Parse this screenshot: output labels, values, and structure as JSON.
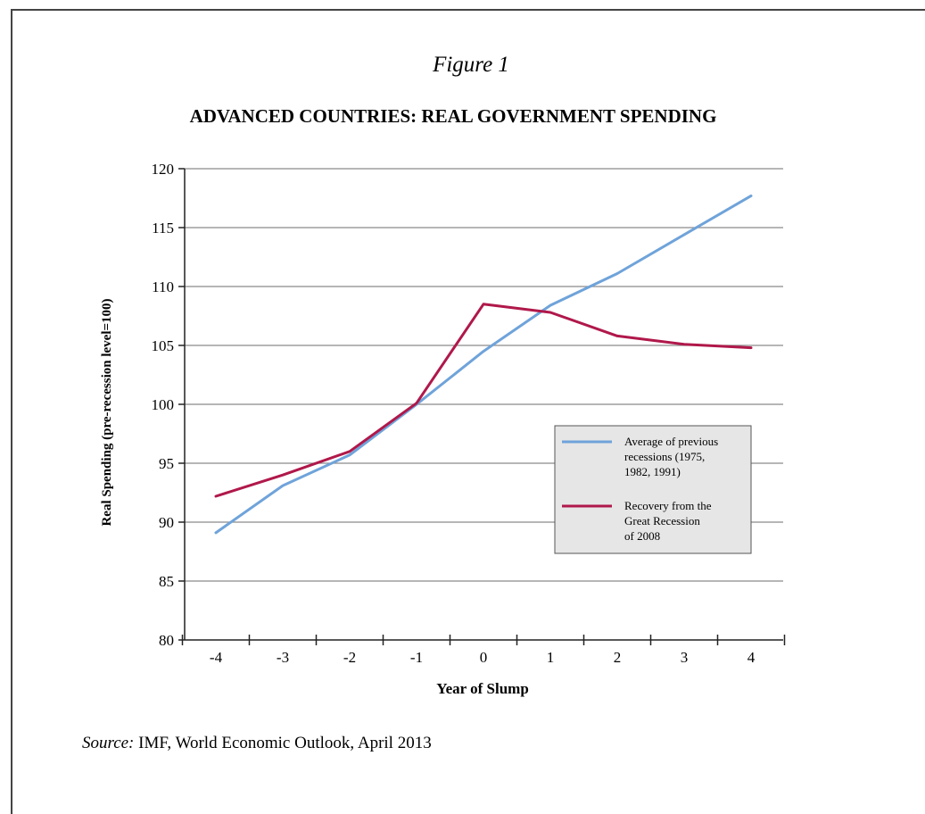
{
  "figure_label": "Figure 1",
  "source": {
    "prefix": "Source:",
    "text": " IMF, World Economic Outlook, April 2013"
  },
  "colors": {
    "average": "#6fa3da",
    "recovery": "#b0184a",
    "grid": "#8a8a8a",
    "legend_bg": "#e6e6e6"
  },
  "chart_data": {
    "type": "line",
    "title": "ADVANCED COUNTRIES: REAL GOVERNMENT SPENDING",
    "xlabel": "Year of Slump",
    "ylabel": "Real Spending (pre-recession level=100)",
    "x": [
      -4,
      -3,
      -2,
      -1,
      0,
      1,
      2,
      3,
      4
    ],
    "x_tick_labels": [
      "-4",
      "-3",
      "-2",
      "-1",
      "0",
      "1",
      "2",
      "3",
      "4"
    ],
    "ylim": [
      80,
      120
    ],
    "y_ticks": [
      80,
      85,
      90,
      95,
      100,
      105,
      110,
      115,
      120
    ],
    "grid": "horizontal",
    "legend_position": "right",
    "series": [
      {
        "name": "Average of previous recessions (1975, 1982, 1991)",
        "legend_lines": [
          "Average of previous",
          "recessions (1975,",
          "1982, 1991)"
        ],
        "color_key": "average",
        "values": [
          89.1,
          93.1,
          95.7,
          100.0,
          104.5,
          108.4,
          111.1,
          114.4,
          117.7
        ]
      },
      {
        "name": "Recovery from the Great Recession of 2008",
        "legend_lines": [
          "Recovery from the",
          "Great Recession",
          "of 2008"
        ],
        "color_key": "recovery",
        "values": [
          92.2,
          94.0,
          96.0,
          100.1,
          108.5,
          107.8,
          105.8,
          105.1,
          104.8
        ]
      }
    ]
  }
}
